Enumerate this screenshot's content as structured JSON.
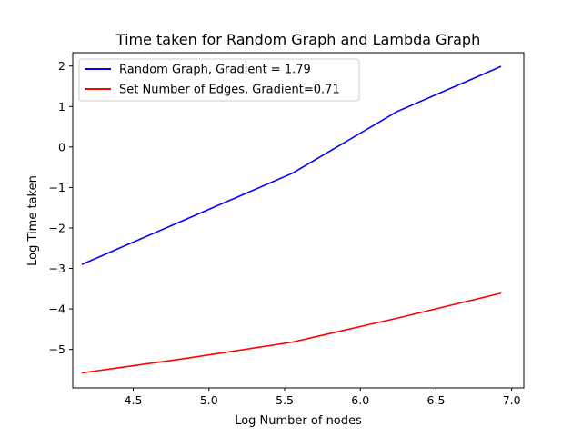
{
  "chart_data": {
    "type": "line",
    "title": "Time taken for Random Graph and Lambda Graph",
    "xlabel": "Log Number of nodes",
    "ylabel": "Log Time taken",
    "xlim": [
      4.1,
      7.08
    ],
    "ylim": [
      -5.95,
      2.33
    ],
    "x_ticks": [
      4.5,
      5.0,
      5.5,
      6.0,
      6.5,
      7.0
    ],
    "x_tick_labels": [
      "4.5",
      "5.0",
      "5.5",
      "6.0",
      "6.5",
      "7.0"
    ],
    "y_ticks": [
      -5,
      -4,
      -3,
      -2,
      -1,
      0,
      1,
      2
    ],
    "y_tick_labels": [
      "−5",
      "−4",
      "−3",
      "−2",
      "−1",
      "0",
      "1",
      "2"
    ],
    "grid": false,
    "legend_position": "top-left",
    "series": [
      {
        "name": "Random Graph, Gradient = 1.79",
        "color": "#0000ff",
        "x": [
          4.16,
          5.55,
          6.24,
          6.93
        ],
        "y": [
          -2.9,
          -0.65,
          0.87,
          1.99
        ]
      },
      {
        "name": "Set Number of Edges, Gradient=0.71",
        "color": "#ff0000",
        "x": [
          4.16,
          4.85,
          5.55,
          6.24,
          6.93
        ],
        "y": [
          -5.58,
          -5.22,
          -4.82,
          -4.23,
          -3.61
        ]
      }
    ]
  }
}
